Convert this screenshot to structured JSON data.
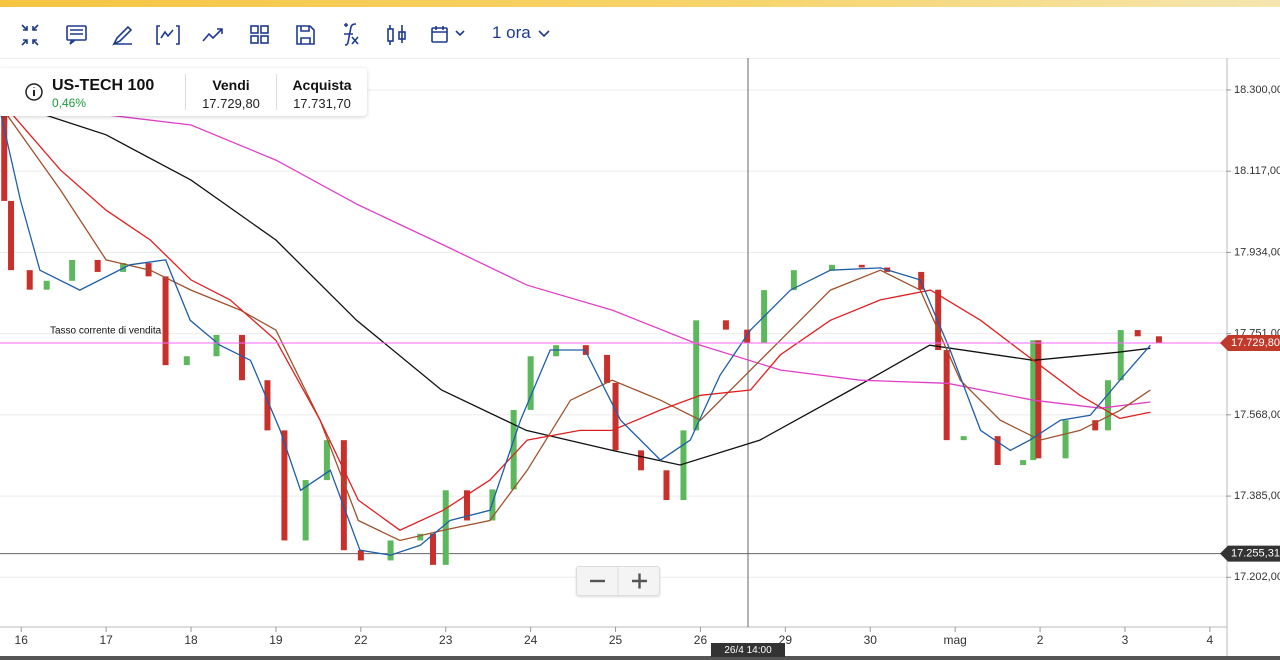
{
  "toolbar": {
    "timeframe": "1 ora"
  },
  "instrument": {
    "name": "US-TECH 100",
    "change": "0,46%",
    "sell_label": "Vendi",
    "sell": "17.729,80",
    "buy_label": "Acquista",
    "buy": "17.731,70"
  },
  "chart_data": {
    "type": "candlestick",
    "annotation": "Tasso corrente di vendita",
    "xlim": [
      -0.25,
      14.19
    ],
    "xticks": [
      {
        "value": 0,
        "label": "16"
      },
      {
        "value": 1,
        "label": "17"
      },
      {
        "value": 2,
        "label": "18"
      },
      {
        "value": 3,
        "label": "19"
      },
      {
        "value": 4,
        "label": "22"
      },
      {
        "value": 5,
        "label": "23"
      },
      {
        "value": 6,
        "label": "24"
      },
      {
        "value": 7,
        "label": "25"
      },
      {
        "value": 8,
        "label": "26"
      },
      {
        "value": 9,
        "label": "29"
      },
      {
        "value": 10,
        "label": "30"
      },
      {
        "value": 11,
        "label": "mag"
      },
      {
        "value": 12,
        "label": "2"
      },
      {
        "value": 13,
        "label": "3"
      },
      {
        "value": 14,
        "label": "4"
      }
    ],
    "ylim": [
      17090,
      18372
    ],
    "yticks": [
      {
        "value": 18300,
        "label": "18.300,00"
      },
      {
        "value": 18117,
        "label": "18.117,00"
      },
      {
        "value": 17934,
        "label": "17.934,00"
      },
      {
        "value": 17751,
        "label": "17.751,00"
      },
      {
        "value": 17568,
        "label": "17.568,00"
      },
      {
        "value": 17385,
        "label": "17.385,00"
      },
      {
        "value": 17202,
        "label": "17.202,00"
      }
    ],
    "grid": true,
    "up_color": "#5cb85c",
    "down_color": "#c9302c",
    "candles": {
      "x": [
        -0.2,
        -0.12,
        0.1,
        0.3,
        0.6,
        0.9,
        1.2,
        1.5,
        1.7,
        1.95,
        2.3,
        2.6,
        2.9,
        3.1,
        3.35,
        3.6,
        3.8,
        4.0,
        4.35,
        4.7,
        4.85,
        5.0,
        5.25,
        5.55,
        5.8,
        6.0,
        6.3,
        6.65,
        6.9,
        7.0,
        7.3,
        7.6,
        7.8,
        7.95,
        8.3,
        8.55,
        8.75,
        9.1,
        9.55,
        9.9,
        10.2,
        10.6,
        10.8,
        10.9,
        11.1,
        11.5,
        11.8,
        11.92,
        11.98,
        12.3,
        12.65,
        12.8,
        12.95,
        13.15,
        13.4
      ],
      "open": [
        18255,
        18050,
        17894,
        17850,
        17870,
        17917,
        17890,
        17910,
        17880,
        17680,
        17700,
        17748,
        17646,
        17533,
        17285,
        17421,
        17511,
        17263,
        17240,
        17285,
        17300,
        17230,
        17398,
        17330,
        17400,
        17579,
        17700,
        17725,
        17703,
        17640,
        17488,
        17443,
        17376,
        17533,
        17781,
        17760,
        17730,
        17849,
        17894,
        17906,
        17900,
        17890,
        17850,
        17714,
        17511,
        17520,
        17455,
        17466,
        17736,
        17470,
        17556,
        17533,
        17646,
        17759,
        17745
      ],
      "close": [
        18050,
        17894,
        17850,
        17870,
        17917,
        17890,
        17910,
        17880,
        17680,
        17700,
        17748,
        17646,
        17533,
        17285,
        17421,
        17511,
        17263,
        17240,
        17285,
        17300,
        17230,
        17398,
        17330,
        17400,
        17579,
        17700,
        17725,
        17703,
        17640,
        17488,
        17443,
        17376,
        17533,
        17781,
        17760,
        17730,
        17849,
        17894,
        17906,
        17900,
        17890,
        17850,
        17714,
        17511,
        17520,
        17455,
        17466,
        17736,
        17470,
        17556,
        17533,
        17646,
        17759,
        17745,
        17730
      ]
    },
    "series": [
      {
        "color": "#111111",
        "x": [
          -0.25,
          1,
          2,
          3,
          3.95,
          4.95,
          5.95,
          6.96,
          7.76,
          8.7,
          9.77,
          10.7,
          11.92,
          12.91,
          13.3
        ],
        "values": [
          18277,
          18199,
          18097,
          17962,
          17781,
          17624,
          17533,
          17488,
          17455,
          17511,
          17624,
          17725,
          17691,
          17709,
          17718
        ]
      },
      {
        "color": "#e040c8",
        "x": [
          -0.25,
          1,
          2,
          3,
          3.97,
          4.97,
          5.96,
          6.96,
          8.0,
          8.94,
          9.88,
          10.91,
          11.92,
          12.71,
          13.3
        ],
        "values": [
          18311,
          18244,
          18221,
          18142,
          18041,
          17951,
          17860,
          17804,
          17725,
          17669,
          17646,
          17639,
          17601,
          17583,
          17597
        ]
      },
      {
        "color": "#a0522d",
        "x": [
          -0.25,
          0.46,
          1,
          1.52,
          2,
          2.58,
          3,
          3.52,
          3.97,
          4.46,
          4.97,
          5.52,
          5.96,
          6.47,
          6.96,
          7.53,
          8.0,
          8.47,
          8.94,
          9.53,
          10.12,
          10.59,
          11.06,
          11.53,
          12.0,
          12.47,
          12.94,
          13.3
        ],
        "values": [
          18266,
          18075,
          17917,
          17894,
          17849,
          17804,
          17759,
          17556,
          17330,
          17285,
          17308,
          17330,
          17443,
          17601,
          17646,
          17601,
          17556,
          17646,
          17736,
          17849,
          17894,
          17849,
          17646,
          17556,
          17511,
          17533,
          17578,
          17624
        ]
      },
      {
        "color": "#e02020",
        "x": [
          -0.25,
          0.46,
          1,
          1.52,
          2,
          2.46,
          3,
          3.52,
          3.97,
          4.46,
          4.97,
          5.52,
          5.96,
          6.58,
          6.96,
          7.53,
          8.0,
          8.59,
          8.94,
          9.53,
          10.12,
          10.71,
          11.3,
          11.92,
          12.47,
          12.94,
          13.3
        ],
        "values": [
          18277,
          18120,
          18029,
          17962,
          17872,
          17827,
          17736,
          17556,
          17376,
          17308,
          17353,
          17421,
          17511,
          17533,
          17533,
          17579,
          17612,
          17624,
          17703,
          17781,
          17827,
          17849,
          17781,
          17691,
          17612,
          17560,
          17574
        ]
      },
      {
        "color": "#1f5fa8",
        "x": [
          -0.25,
          -0.01,
          0.22,
          0.69,
          1.28,
          1.7,
          1.99,
          2.34,
          2.7,
          3.05,
          3.29,
          3.64,
          3.99,
          4.35,
          4.7,
          5.05,
          5.52,
          5.88,
          6.23,
          6.64,
          7.06,
          7.53,
          7.88,
          8.23,
          8.59,
          9.06,
          9.53,
          10.12,
          10.59,
          10.94,
          11.3,
          11.65,
          11.88,
          12.24,
          12.59,
          12.94,
          13.3
        ],
        "values": [
          18255,
          18052,
          17894,
          17849,
          17906,
          17917,
          17781,
          17725,
          17691,
          17533,
          17398,
          17443,
          17263,
          17252,
          17274,
          17330,
          17353,
          17556,
          17714,
          17714,
          17556,
          17466,
          17511,
          17657,
          17759,
          17849,
          17894,
          17899,
          17872,
          17714,
          17533,
          17488,
          17511,
          17556,
          17567,
          17646,
          17725
        ]
      }
    ],
    "current_price": {
      "value": 17729.8,
      "label": "17.729,80",
      "color": "#ff66ff"
    },
    "crosshair": {
      "x": 8.56,
      "x_label": "26/4 14:00",
      "y": 17255.31,
      "y_label": "17.255,31"
    }
  }
}
